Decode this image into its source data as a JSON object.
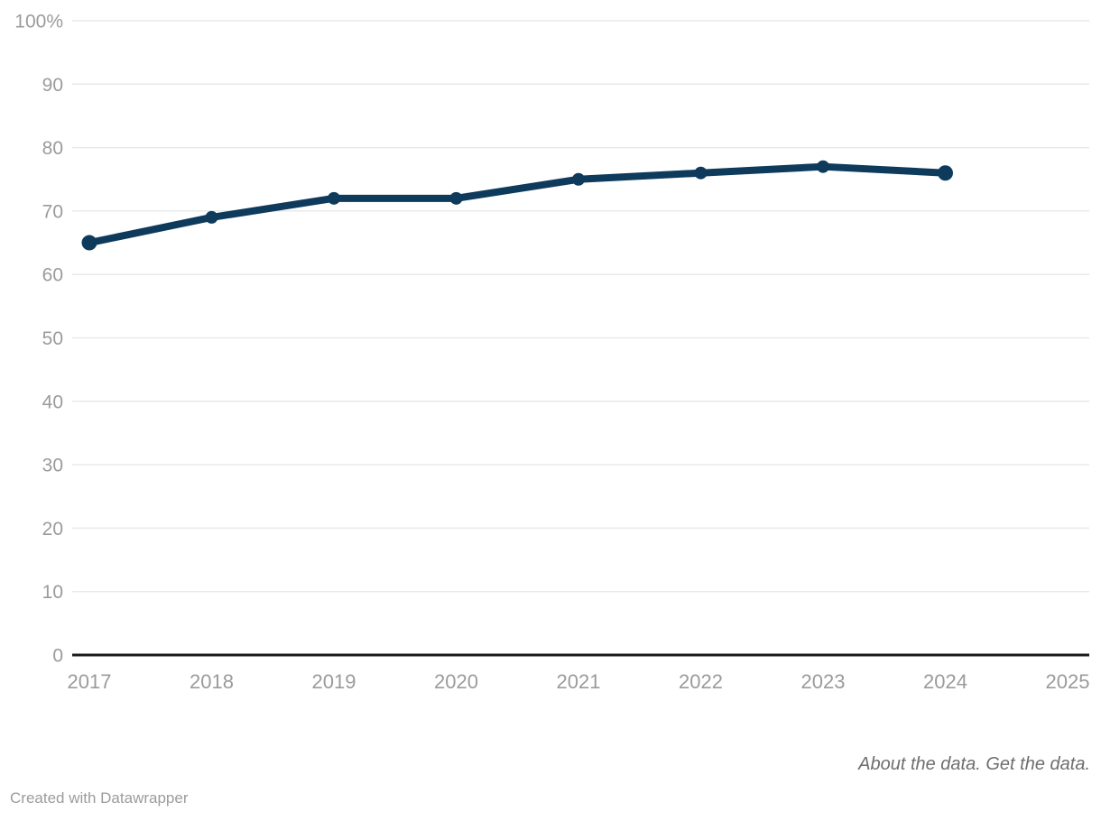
{
  "chart_data": {
    "type": "line",
    "x": [
      2017,
      2018,
      2019,
      2020,
      2021,
      2022,
      2023,
      2024
    ],
    "values": [
      65,
      69,
      72,
      72,
      75,
      76,
      77,
      76
    ],
    "x_tick_values": [
      2017,
      2018,
      2019,
      2020,
      2021,
      2022,
      2023,
      2024,
      2025
    ],
    "x_tick_labels": [
      "2017",
      "2018",
      "2019",
      "2020",
      "2021",
      "2022",
      "2023",
      "2024",
      "2025"
    ],
    "y_tick_values": [
      0,
      10,
      20,
      30,
      40,
      50,
      60,
      70,
      80,
      90,
      100
    ],
    "y_tick_labels": [
      "0",
      "10",
      "20",
      "30",
      "40",
      "50",
      "60",
      "70",
      "80",
      "90",
      "100%"
    ],
    "ylim": [
      0,
      100
    ],
    "xlim": [
      2017,
      2025
    ],
    "grid": "horizontal",
    "legend": "none",
    "line_color": "#0e3a5c",
    "gridline_color": "#e9e9e9",
    "tick_label_color": "#9b9b9b",
    "axis_line_color": "#1a1a1a"
  },
  "footer": {
    "about_link": "About the data.",
    "get_link": "Get the data.",
    "credit": "Created with Datawrapper"
  }
}
